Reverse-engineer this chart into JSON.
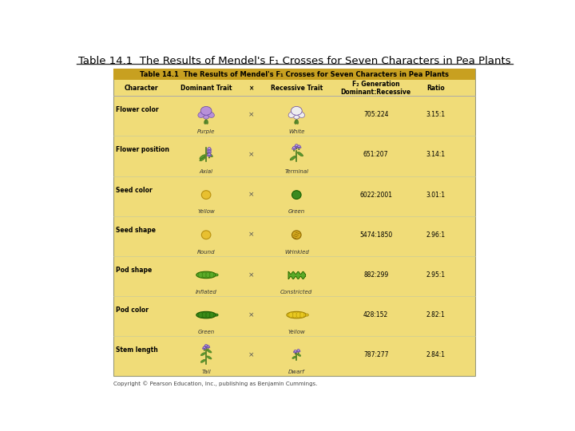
{
  "title_outside": "Table 14.1  The Results of Mendel's F₁ Crosses for Seven Characters in Pea Plants",
  "table_title": "Table 14.1  The Results of Mendel's F₁ Crosses for Seven Characters in Pea Plants",
  "header_bg": "#C8A020",
  "table_bg": "#F0DC78",
  "col_headers": [
    "Character",
    "Dominant Trait",
    "×",
    "Recessive Trait",
    "F₂ Generation\nDominant:Recessive",
    "Ratio"
  ],
  "rows": [
    {
      "character": "Flower color",
      "dominant_trait": "Purple",
      "recessive_trait": "White",
      "f2": "705:224",
      "ratio": "3.15:1"
    },
    {
      "character": "Flower position",
      "dominant_trait": "Axial",
      "recessive_trait": "Terminal",
      "f2": "651:207",
      "ratio": "3.14:1"
    },
    {
      "character": "Seed color",
      "dominant_trait": "Yellow",
      "recessive_trait": "Green",
      "f2": "6022:2001",
      "ratio": "3.01:1"
    },
    {
      "character": "Seed shape",
      "dominant_trait": "Round",
      "recessive_trait": "Wrinkled",
      "f2": "5474:1850",
      "ratio": "2.96:1"
    },
    {
      "character": "Pod shape",
      "dominant_trait": "Inflated",
      "recessive_trait": "Constricted",
      "f2": "882:299",
      "ratio": "2.95:1"
    },
    {
      "character": "Pod color",
      "dominant_trait": "Green",
      "recessive_trait": "Yellow",
      "f2": "428:152",
      "ratio": "2.82:1"
    },
    {
      "character": "Stem length",
      "dominant_trait": "Tall",
      "recessive_trait": "Dwarf",
      "f2": "787:277",
      "ratio": "2.84:1"
    }
  ],
  "copyright": "Copyright © Pearson Education, Inc., publishing as Benjamin Cummings.",
  "outside_bg": "#FFFFFF"
}
